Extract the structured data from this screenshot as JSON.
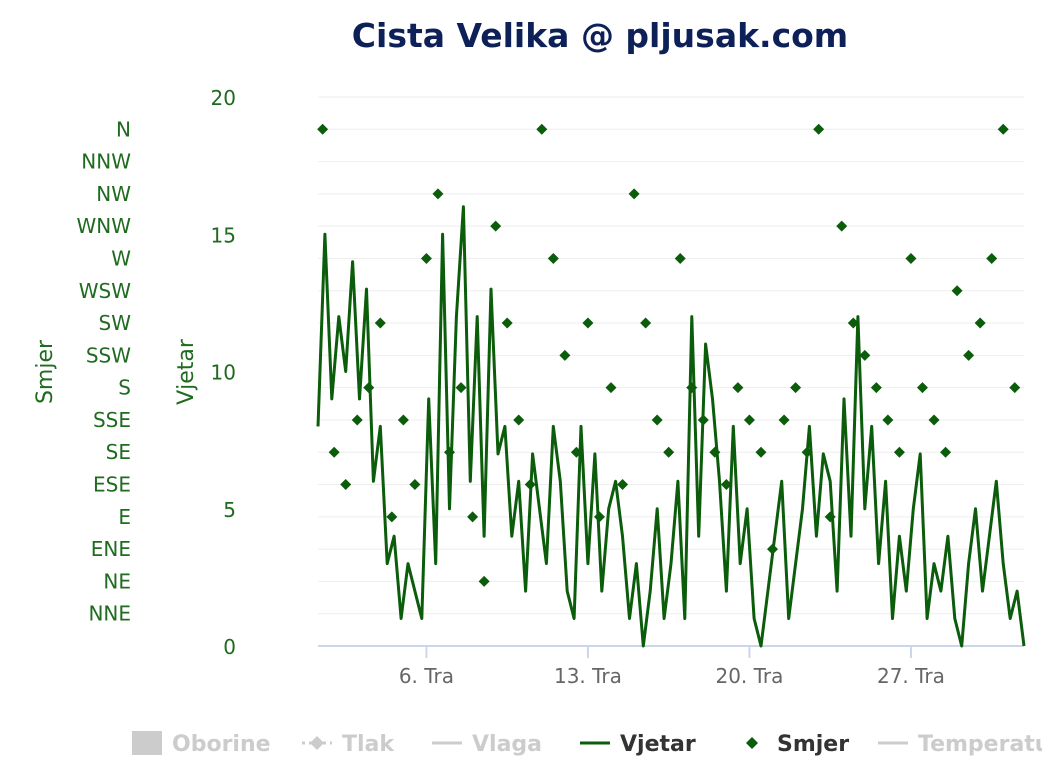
{
  "title": "Cista Velika @ pljusak.com",
  "colors": {
    "series": "#0b5c0b",
    "inactive": "#cccccc",
    "title": "#0d2158",
    "axis": "#1f6b1f"
  },
  "chart_data": {
    "type": "line",
    "axes": {
      "wind": {
        "title": "Vjetar",
        "range": [
          0,
          20
        ],
        "ticks": [
          "0",
          "5",
          "10",
          "15",
          "20"
        ]
      },
      "direction": {
        "title": "Smjer",
        "categories": [
          "NNE",
          "NE",
          "ENE",
          "E",
          "ESE",
          "SE",
          "SSE",
          "S",
          "SSW",
          "SW",
          "WSW",
          "W",
          "WNW",
          "NW",
          "NNW",
          "N"
        ]
      },
      "x": {
        "range_days": [
          1.3,
          31.9
        ],
        "ticks": [
          {
            "label": "6. Tra",
            "day": 6
          },
          {
            "label": "13. Tra",
            "day": 13
          },
          {
            "label": "20. Tra",
            "day": 20
          },
          {
            "label": "27. Tra",
            "day": 27
          }
        ]
      }
    },
    "grid": true,
    "legend_position": "bottom",
    "legend": [
      {
        "label": "Oborine",
        "symbol": "box",
        "active": false
      },
      {
        "label": "Tlak",
        "symbol": "dash-diamond",
        "active": false
      },
      {
        "label": "Vlaga",
        "symbol": "line",
        "active": false
      },
      {
        "label": "Vjetar",
        "symbol": "line",
        "active": true
      },
      {
        "label": "Smjer",
        "symbol": "diamond",
        "active": true
      },
      {
        "label": "Temperatu",
        "symbol": "line",
        "active": false
      }
    ],
    "series": [
      {
        "name": "Vjetar",
        "type": "line",
        "x": [
          1.3,
          1.6,
          1.9,
          2.2,
          2.5,
          2.8,
          3.1,
          3.4,
          3.7,
          4.0,
          4.3,
          4.6,
          4.9,
          5.2,
          5.5,
          5.8,
          6.1,
          6.4,
          6.7,
          7.0,
          7.3,
          7.6,
          7.9,
          8.2,
          8.5,
          8.8,
          9.1,
          9.4,
          9.7,
          10.0,
          10.3,
          10.6,
          10.9,
          11.2,
          11.5,
          11.8,
          12.1,
          12.4,
          12.7,
          13.0,
          13.3,
          13.6,
          13.9,
          14.2,
          14.5,
          14.8,
          15.1,
          15.4,
          15.7,
          16.0,
          16.3,
          16.6,
          16.9,
          17.2,
          17.5,
          17.8,
          18.1,
          18.4,
          18.7,
          19.0,
          19.3,
          19.6,
          19.9,
          20.2,
          20.5,
          20.8,
          21.1,
          21.4,
          21.7,
          22.0,
          22.3,
          22.6,
          22.9,
          23.2,
          23.5,
          23.8,
          24.1,
          24.4,
          24.7,
          25.0,
          25.3,
          25.6,
          25.9,
          26.2,
          26.5,
          26.8,
          27.1,
          27.4,
          27.7,
          28.0,
          28.3,
          28.6,
          28.9,
          29.2,
          29.5,
          29.8,
          30.1,
          30.4,
          30.7,
          31.0,
          31.3,
          31.6,
          31.9
        ],
        "values": [
          8,
          15,
          9,
          12,
          10,
          14,
          9,
          13,
          6,
          8,
          3,
          4,
          1,
          3,
          2,
          1,
          9,
          3,
          15,
          5,
          12,
          16,
          6,
          12,
          4,
          13,
          7,
          8,
          4,
          6,
          2,
          7,
          5,
          3,
          8,
          6,
          2,
          1,
          8,
          3,
          7,
          2,
          5,
          6,
          4,
          1,
          3,
          0,
          2,
          5,
          1,
          3,
          6,
          1,
          12,
          4,
          11,
          9,
          6,
          2,
          8,
          3,
          5,
          1,
          0,
          2,
          4,
          6,
          1,
          3,
          5,
          8,
          4,
          7,
          6,
          2,
          9,
          4,
          12,
          5,
          8,
          3,
          6,
          1,
          4,
          2,
          5,
          7,
          1,
          3,
          2,
          4,
          1,
          0,
          3,
          5,
          2,
          4,
          6,
          3,
          1,
          2,
          0
        ]
      },
      {
        "name": "Smjer",
        "type": "scatter",
        "x": [
          1.5,
          2.0,
          2.5,
          3.0,
          3.5,
          4.0,
          4.5,
          5.0,
          5.5,
          6.0,
          6.5,
          7.0,
          7.5,
          8.0,
          8.5,
          9.0,
          9.5,
          10.0,
          10.5,
          11.0,
          11.5,
          12.0,
          12.5,
          13.0,
          13.5,
          14.0,
          14.5,
          15.0,
          15.5,
          16.0,
          16.5,
          17.0,
          17.5,
          18.0,
          18.5,
          19.0,
          19.5,
          20.0,
          20.5,
          21.0,
          21.5,
          22.0,
          22.5,
          23.0,
          23.5,
          24.0,
          24.5,
          25.0,
          25.5,
          26.0,
          26.5,
          27.0,
          27.5,
          28.0,
          28.5,
          29.0,
          29.5,
          30.0,
          30.5,
          31.0,
          31.5
        ],
        "values": [
          "N",
          "SE",
          "ESE",
          "SSE",
          "S",
          "SW",
          "E",
          "SSE",
          "ESE",
          "W",
          "NW",
          "SE",
          "S",
          "E",
          "NE",
          "WNW",
          "SW",
          "SSE",
          "ESE",
          "N",
          "W",
          "SSW",
          "SE",
          "SW",
          "E",
          "S",
          "ESE",
          "NW",
          "SW",
          "SSE",
          "SE",
          "W",
          "S",
          "SSE",
          "SE",
          "ESE",
          "S",
          "SSE",
          "SE",
          "ENE",
          "SSE",
          "S",
          "SE",
          "N",
          "E",
          "WNW",
          "SW",
          "SSW",
          "S",
          "SSE",
          "SE",
          "W",
          "S",
          "SSE",
          "SE",
          "WSW",
          "SSW",
          "SW",
          "W",
          "N",
          "S"
        ]
      }
    ]
  }
}
